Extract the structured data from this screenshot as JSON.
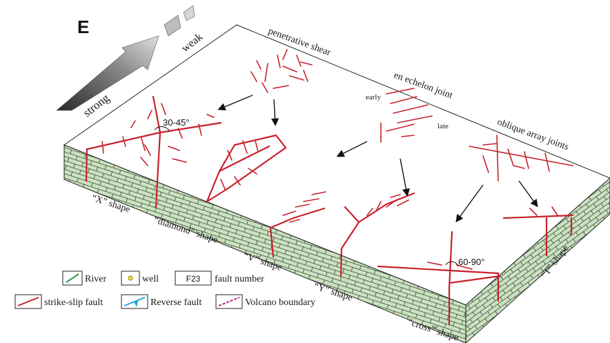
{
  "panel_label": "E",
  "strength": {
    "strong": "strong",
    "weak": "weak"
  },
  "patterns": {
    "penetrative_shear": "penetrative shear",
    "en_echelon_joint": "en echelon joint",
    "oblique_array_joints": "oblique array joints",
    "early": "early",
    "late": "late"
  },
  "angles": {
    "acute": "30-45°",
    "right": "60-90°"
  },
  "shapes": {
    "x": "“X” shape",
    "diamond": "“diamond” shape",
    "v": "“V” shape",
    "y": "“Y” shape",
    "cross": "“cross” shape",
    "t": "“T” shape"
  },
  "legend": {
    "river": "River",
    "well": "well",
    "fault_number_box": "F23",
    "fault_number": "fault number",
    "strike_slip": "strike-slip fault",
    "reverse": "Reverse fault",
    "volcano": "Volcano boundary"
  },
  "colors": {
    "fault": "#c8202a",
    "block_side": "#c9e3bf",
    "river": "#2e9a48",
    "reverse": "#1aa3e0",
    "volcano": "#a0307a",
    "well": "#f2e000"
  }
}
